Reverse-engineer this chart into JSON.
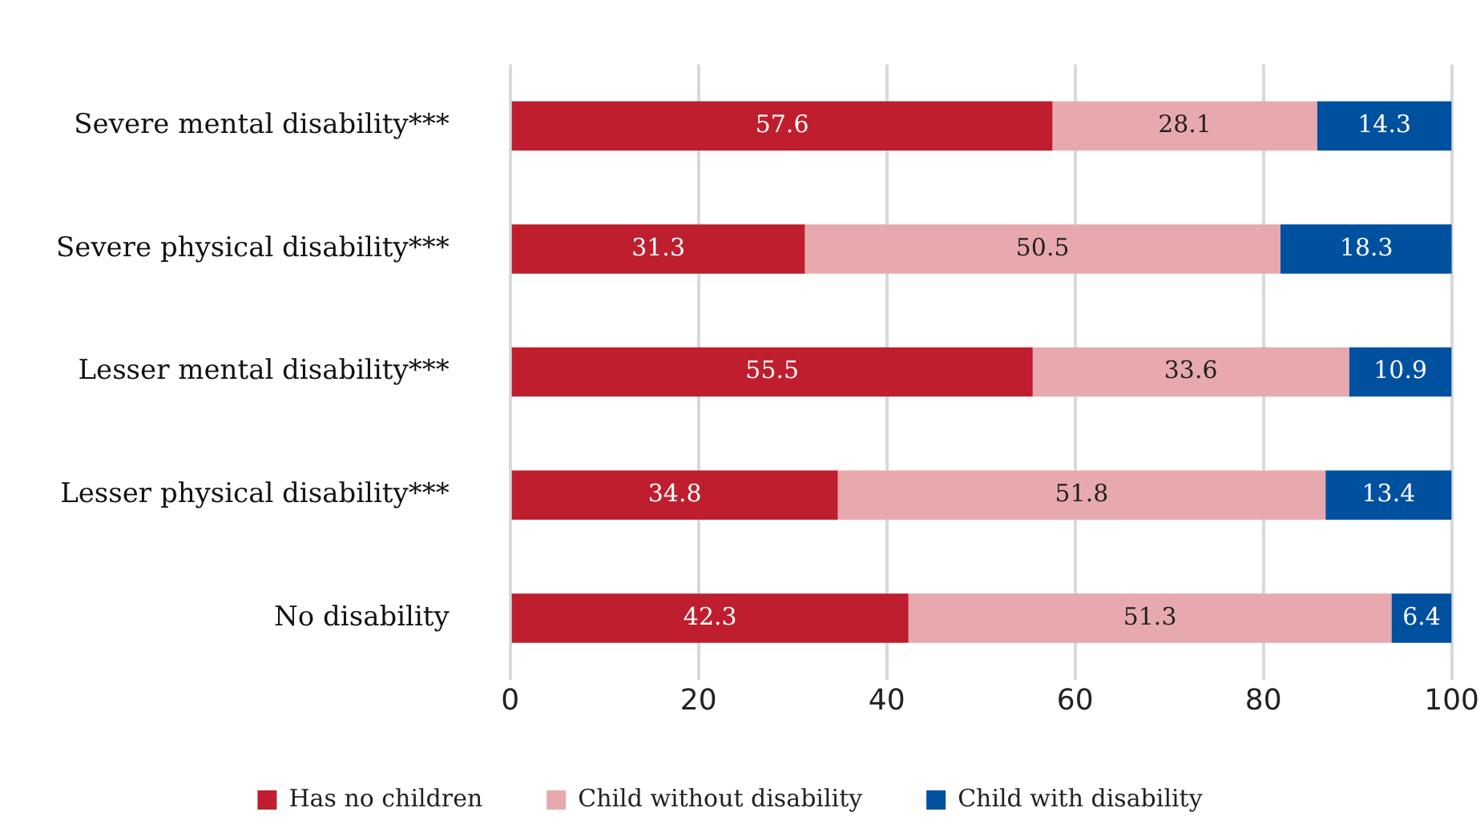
{
  "chart_data": {
    "type": "bar",
    "orientation": "horizontal",
    "stacked": true,
    "categories": [
      "Severe mental disability***",
      "Severe physical disability***",
      "Lesser mental disability***",
      "Lesser physical disability***",
      "No disability"
    ],
    "series": [
      {
        "name": "Has no children",
        "color": "#be1e2d",
        "values": [
          57.6,
          31.3,
          55.5,
          34.8,
          42.3
        ]
      },
      {
        "name": "Child without disability",
        "color": "#e8a9ae",
        "values": [
          28.1,
          50.5,
          33.6,
          51.8,
          51.3
        ]
      },
      {
        "name": "Child with disability",
        "color": "#0050a0",
        "values": [
          14.3,
          18.3,
          10.9,
          13.4,
          6.4
        ]
      }
    ],
    "xlim": [
      0,
      100
    ],
    "xticks": [
      0,
      20,
      40,
      60,
      80,
      100
    ],
    "grid": "x",
    "legend": "bottom",
    "data_labels": true
  }
}
